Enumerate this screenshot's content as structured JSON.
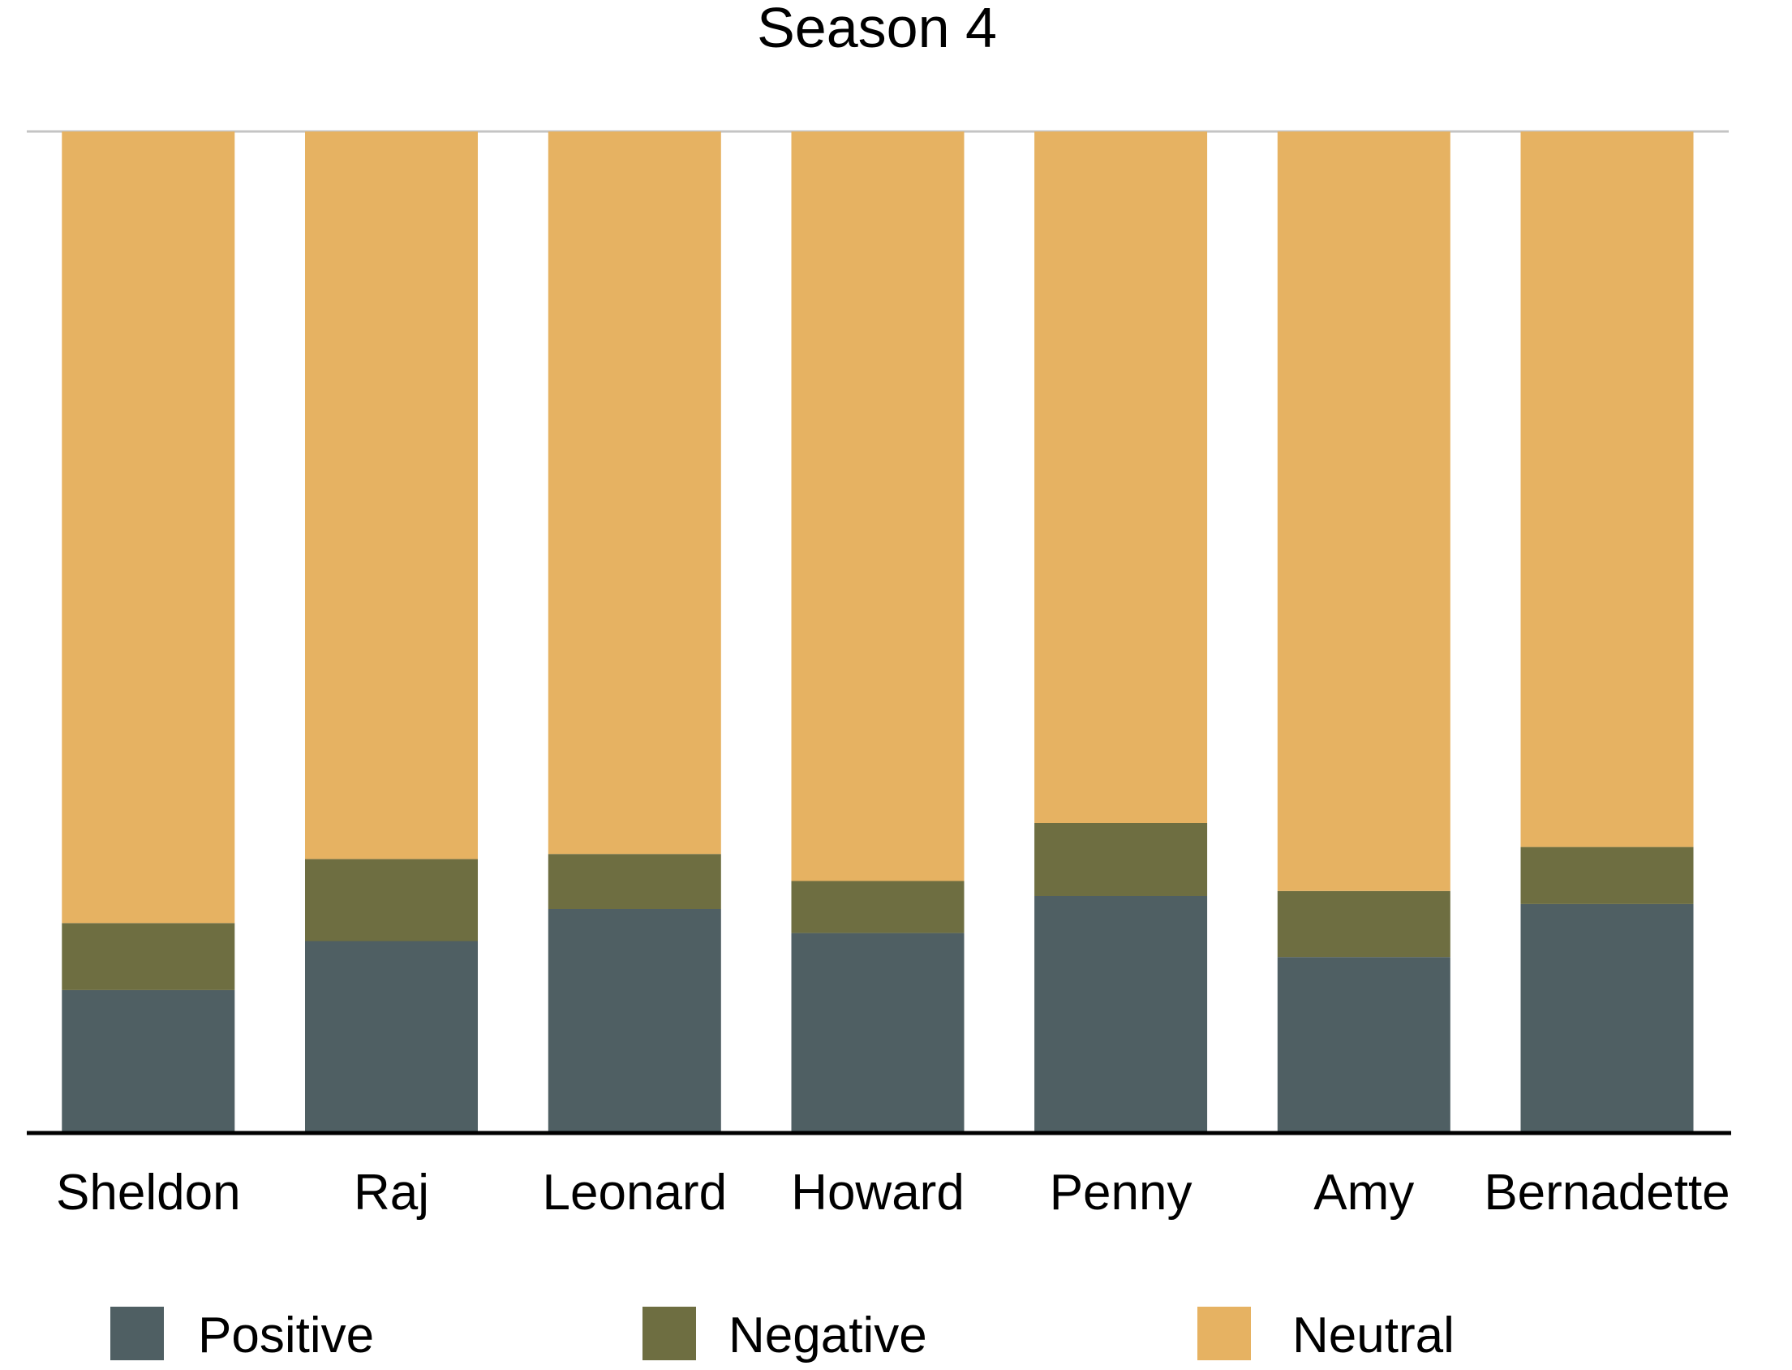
{
  "chart_data": {
    "type": "bar",
    "stacked": true,
    "normalized": true,
    "title": "Season 4",
    "xlabel": "",
    "ylabel": "",
    "ylim": [
      0,
      100
    ],
    "grid": false,
    "legend_position": "bottom",
    "categories": [
      "Sheldon",
      "Raj",
      "Leonard",
      "Howard",
      "Penny",
      "Amy",
      "Bernadette"
    ],
    "series": [
      {
        "name": "Positive",
        "color": "#4F5F63",
        "values": [
          14.2,
          19.1,
          22.3,
          19.9,
          23.6,
          17.5,
          22.8
        ]
      },
      {
        "name": "Negative",
        "color": "#6E6E41",
        "values": [
          6.7,
          8.2,
          5.5,
          5.2,
          7.3,
          6.6,
          5.7
        ]
      },
      {
        "name": "Neutral",
        "color": "#E6B262",
        "values": [
          79.1,
          72.7,
          72.2,
          74.9,
          69.1,
          75.9,
          71.5
        ]
      }
    ]
  }
}
